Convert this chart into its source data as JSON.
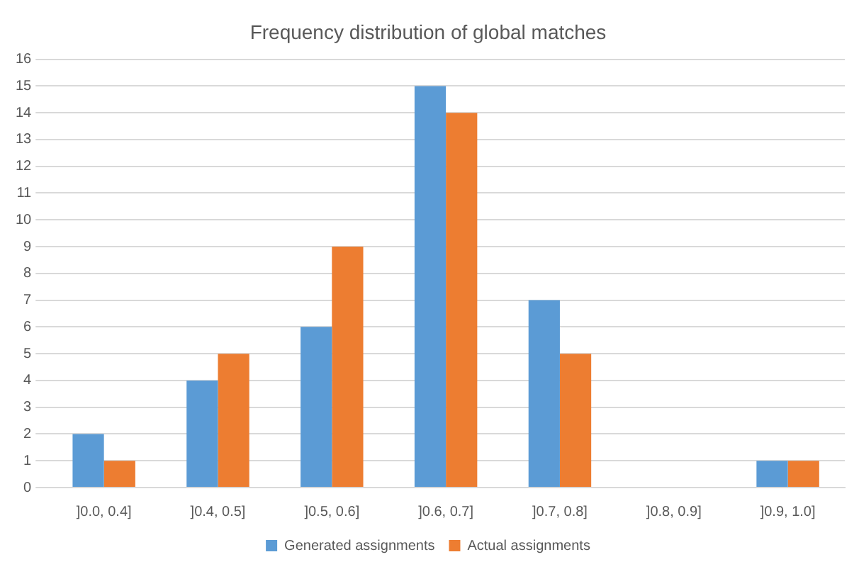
{
  "chart_data": {
    "type": "bar",
    "title": "Frequency distribution of global matches",
    "categories": [
      "]0.0, 0.4]",
      "]0.4, 0.5]",
      "]0.5, 0.6]",
      "]0.6, 0.7]",
      "]0.7, 0.8]",
      "]0.8, 0.9]",
      "]0.9, 1.0]"
    ],
    "series": [
      {
        "name": "Generated assignments",
        "color": "#5b9bd5",
        "values": [
          2,
          4,
          6,
          15,
          7,
          0,
          1
        ]
      },
      {
        "name": "Actual assignments",
        "color": "#ed7d31",
        "values": [
          1,
          5,
          9,
          14,
          5,
          0,
          1
        ]
      }
    ],
    "ylim": [
      0,
      16
    ],
    "yticks": [
      0,
      1,
      2,
      3,
      4,
      5,
      6,
      7,
      8,
      9,
      10,
      11,
      12,
      13,
      14,
      15,
      16
    ],
    "grid": "y",
    "legend": "bottom"
  }
}
